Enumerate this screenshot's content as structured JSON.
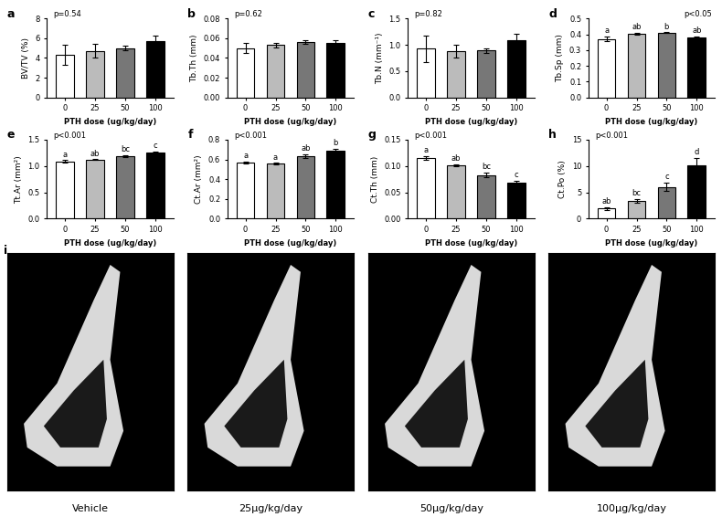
{
  "chart_data": [
    {
      "type": "bar",
      "panel_label": "a",
      "ylabel": "BV/TV (%)",
      "xlabel": "PTH dose (ug/kg/day)",
      "categories": [
        "0",
        "25",
        "50",
        "100"
      ],
      "values": [
        4.3,
        4.7,
        5.0,
        5.7
      ],
      "errors": [
        1.0,
        0.7,
        0.2,
        0.6
      ],
      "colors": [
        "#ffffff",
        "#bbbbbb",
        "#777777",
        "#000000"
      ],
      "annotation": "p=0.54",
      "ylim": [
        0,
        8
      ],
      "yticks": [
        0,
        2,
        4,
        6,
        8
      ]
    },
    {
      "type": "bar",
      "panel_label": "b",
      "ylabel": "Tb.Th (mm)",
      "xlabel": "PTH dose (ug/kg/day)",
      "categories": [
        "0",
        "25",
        "50",
        "100"
      ],
      "values": [
        0.05,
        0.053,
        0.056,
        0.055
      ],
      "errors": [
        0.005,
        0.002,
        0.002,
        0.003
      ],
      "colors": [
        "#ffffff",
        "#bbbbbb",
        "#777777",
        "#000000"
      ],
      "annotation": "p=0.62",
      "ylim": [
        0,
        0.08
      ],
      "yticks": [
        {
          "value": 0,
          "label": "0.00"
        },
        {
          "value": 0.02,
          "label": "0.02"
        },
        {
          "value": 0.04,
          "label": "0.04"
        },
        {
          "value": 0.06,
          "label": "0.06"
        },
        {
          "value": 0.08,
          "label": "0.08"
        }
      ]
    },
    {
      "type": "bar",
      "panel_label": "c",
      "ylabel": "Tb.N (mm⁻¹)",
      "xlabel": "PTH dose (ug/kg/day)",
      "categories": [
        "0",
        "25",
        "50",
        "100"
      ],
      "values": [
        0.93,
        0.88,
        0.89,
        1.08
      ],
      "errors": [
        0.25,
        0.12,
        0.05,
        0.13
      ],
      "colors": [
        "#ffffff",
        "#bbbbbb",
        "#777777",
        "#000000"
      ],
      "annotation": "p=0.82",
      "ylim": [
        0,
        1.5
      ],
      "yticks": [
        {
          "value": 0,
          "label": "0.0"
        },
        0.5,
        {
          "value": 1,
          "label": "1.0"
        },
        1.5
      ]
    },
    {
      "type": "bar",
      "panel_label": "d",
      "ylabel": "Tb.Sp (mm)",
      "xlabel": "PTH dose (ug/kg/day)",
      "categories": [
        "0",
        "25",
        "50",
        "100"
      ],
      "values": [
        0.37,
        0.405,
        0.41,
        0.38
      ],
      "errors": [
        0.015,
        0.005,
        0.003,
        0.007
      ],
      "colors": [
        "#ffffff",
        "#bbbbbb",
        "#777777",
        "#000000"
      ],
      "annotation": "p<0.05",
      "significance_letters": [
        "a",
        "ab",
        "b",
        "ab"
      ],
      "ylim": [
        0,
        0.5
      ],
      "yticks": [
        {
          "value": 0,
          "label": "0.0"
        },
        0.1,
        0.2,
        0.3,
        0.4,
        0.5
      ]
    },
    {
      "type": "bar",
      "panel_label": "e",
      "ylabel": "Tt.Ar (mm²)",
      "xlabel": "PTH dose (ug/kg/day)",
      "categories": [
        "0",
        "25",
        "50",
        "100"
      ],
      "values": [
        1.09,
        1.12,
        1.19,
        1.25
      ],
      "errors": [
        0.02,
        0.01,
        0.02,
        0.03
      ],
      "colors": [
        "#ffffff",
        "#bbbbbb",
        "#777777",
        "#000000"
      ],
      "annotation": "p<0.001",
      "significance_letters": [
        "a",
        "ab",
        "bc",
        "c"
      ],
      "ylim": [
        0,
        1.5
      ],
      "yticks": [
        {
          "value": 0,
          "label": "0.0"
        },
        0.5,
        {
          "value": 1,
          "label": "1.0"
        },
        1.5
      ]
    },
    {
      "type": "bar",
      "panel_label": "f",
      "ylabel": "Ct.Ar (mm²)",
      "xlabel": "PTH dose (ug/kg/day)",
      "categories": [
        "0",
        "25",
        "50",
        "100"
      ],
      "values": [
        0.57,
        0.555,
        0.63,
        0.69
      ],
      "errors": [
        0.01,
        0.01,
        0.02,
        0.02
      ],
      "colors": [
        "#ffffff",
        "#bbbbbb",
        "#777777",
        "#000000"
      ],
      "annotation": "p<0.001",
      "significance_letters": [
        "a",
        "a",
        "ab",
        "b"
      ],
      "ylim": [
        0,
        0.8
      ],
      "yticks": [
        {
          "value": 0,
          "label": "0.0"
        },
        0.2,
        0.4,
        0.6,
        0.8
      ]
    },
    {
      "type": "bar",
      "panel_label": "g",
      "ylabel": "Ct.Th (mm)",
      "xlabel": "PTH dose (ug/kg/day)",
      "categories": [
        "0",
        "25",
        "50",
        "100"
      ],
      "values": [
        0.115,
        0.101,
        0.083,
        0.068
      ],
      "errors": [
        0.004,
        0.002,
        0.005,
        0.004
      ],
      "colors": [
        "#ffffff",
        "#bbbbbb",
        "#777777",
        "#000000"
      ],
      "annotation": "p<0.001",
      "significance_letters": [
        "a",
        "ab",
        "bc",
        "c"
      ],
      "ylim": [
        0,
        0.15
      ],
      "yticks": [
        {
          "value": 0,
          "label": "0.00"
        },
        0.05,
        {
          "value": 0.1,
          "label": "0.10"
        },
        0.15
      ]
    },
    {
      "type": "bar",
      "panel_label": "h",
      "ylabel": "Ct.Po (%)",
      "xlabel": "PTH dose (ug/kg/day)",
      "categories": [
        "0",
        "25",
        "50",
        "100"
      ],
      "values": [
        1.9,
        3.4,
        6.0,
        10.1
      ],
      "errors": [
        0.3,
        0.4,
        0.8,
        1.4
      ],
      "colors": [
        "#ffffff",
        "#bbbbbb",
        "#777777",
        "#000000"
      ],
      "annotation": "p<0.001",
      "significance_letters": [
        "ab",
        "bc",
        "c",
        "d"
      ],
      "ylim": [
        0,
        15
      ],
      "yticks": [
        0,
        5,
        10,
        15
      ]
    }
  ],
  "images": {
    "panel_label": "i",
    "captions": [
      "Vehicle",
      "25μg/kg/day",
      "50μg/kg/day",
      "100μg/kg/day"
    ]
  }
}
